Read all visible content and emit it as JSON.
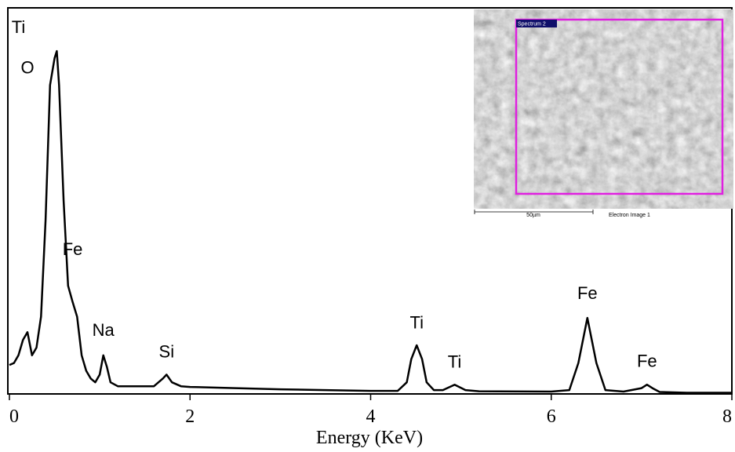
{
  "chart_data": {
    "type": "line",
    "x_label": "Energy (KeV)",
    "color": "#000000",
    "xlim": [
      0,
      8
    ],
    "ylim": [
      0,
      100
    ],
    "xticks": [
      0,
      2,
      4,
      6,
      8
    ],
    "x": [
      0,
      0.05,
      0.1,
      0.15,
      0.2,
      0.25,
      0.3,
      0.35,
      0.4,
      0.45,
      0.5,
      0.525,
      0.55,
      0.6,
      0.65,
      0.7,
      0.75,
      0.8,
      0.85,
      0.9,
      0.95,
      1.0,
      1.04,
      1.08,
      1.12,
      1.2,
      1.4,
      1.6,
      1.7,
      1.74,
      1.8,
      1.9,
      2.0,
      2.5,
      3.0,
      3.5,
      4.0,
      4.3,
      4.4,
      4.45,
      4.51,
      4.57,
      4.62,
      4.7,
      4.8,
      4.93,
      5.05,
      5.2,
      6.0,
      6.2,
      6.3,
      6.4,
      6.5,
      6.6,
      6.8,
      7.0,
      7.06,
      7.12,
      7.2,
      7.5,
      8.0
    ],
    "values": [
      7.5,
      8,
      10,
      14,
      16,
      10,
      12,
      20,
      45,
      80,
      87,
      88.8,
      80,
      50,
      28,
      23.8,
      20,
      10,
      6,
      4,
      3,
      5,
      10,
      7,
      3,
      2,
      2,
      2,
      4,
      5,
      3,
      2,
      1.8,
      1.5,
      1.2,
      1,
      0.8,
      0.8,
      3,
      9,
      12.6,
      9,
      3,
      1,
      1,
      2.4,
      1,
      0.7,
      0.6,
      1,
      8,
      19.7,
      8,
      1,
      0.6,
      1.5,
      2.4,
      1.5,
      0.5,
      0.3,
      0.3
    ],
    "annotations": [
      {
        "text": "Ti",
        "x": 0.1,
        "y": 93.5
      },
      {
        "text": "O",
        "x": 0.2,
        "y": 83
      },
      {
        "text": "Fe",
        "x": 0.7,
        "y": 36
      },
      {
        "text": "Na",
        "x": 1.04,
        "y": 15
      },
      {
        "text": "Si",
        "x": 1.74,
        "y": 9.5
      },
      {
        "text": "Ti",
        "x": 4.51,
        "y": 17
      },
      {
        "text": "Ti",
        "x": 4.93,
        "y": 6.8
      },
      {
        "text": "Fe",
        "x": 6.4,
        "y": 24.6
      },
      {
        "text": "Fe",
        "x": 7.06,
        "y": 7
      }
    ],
    "inset": {
      "region_label": "Spectrum 2",
      "scale_label": "50µm",
      "image_label": "Electron Image 1"
    }
  }
}
